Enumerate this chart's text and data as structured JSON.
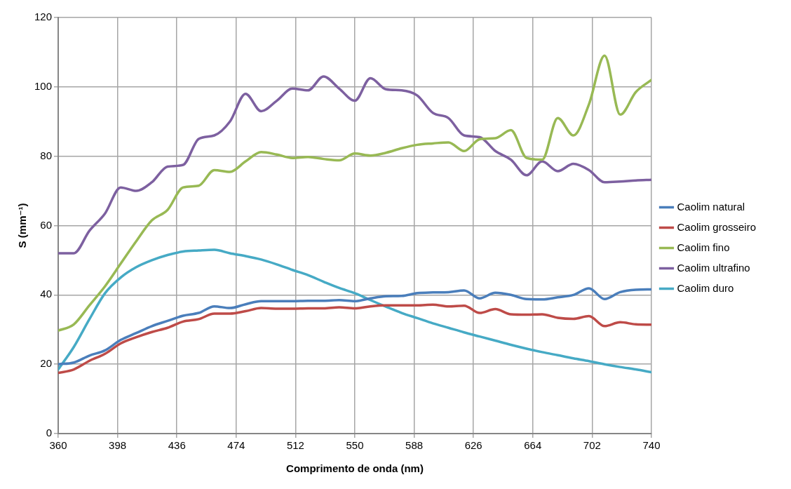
{
  "chart_data": {
    "type": "line",
    "xlabel": "Comprimento de onda (nm)",
    "ylabel": "S (mm⁻¹)",
    "x": [
      360,
      370,
      380,
      390,
      400,
      410,
      420,
      430,
      440,
      450,
      460,
      470,
      480,
      490,
      500,
      510,
      520,
      530,
      540,
      550,
      560,
      570,
      580,
      590,
      600,
      610,
      620,
      630,
      640,
      650,
      660,
      670,
      680,
      690,
      700,
      710,
      720,
      730,
      740
    ],
    "xlim": [
      360,
      740
    ],
    "xticks": [
      360,
      398,
      436,
      474,
      512,
      550,
      588,
      626,
      664,
      702,
      740
    ],
    "ylim": [
      0,
      120
    ],
    "yticks": [
      0,
      20,
      40,
      60,
      80,
      100,
      120
    ],
    "grid": true,
    "legend": "right",
    "marker": "none",
    "line_style": "solid",
    "series": [
      {
        "name": "Caolim natural",
        "color": "#4a7ebb",
        "values": [
          20,
          20.5,
          22.5,
          24,
          27,
          29,
          31,
          32.5,
          34,
          34.8,
          36.7,
          36.2,
          37.3,
          38.2,
          38.2,
          38.2,
          38.3,
          38.3,
          38.5,
          38.2,
          39,
          39.6,
          39.7,
          40.5,
          40.7,
          40.8,
          41.3,
          39,
          40.6,
          40,
          38.8,
          38.7,
          39.3,
          40,
          41.9,
          38.8,
          40.8,
          41.5,
          41.6
        ]
      },
      {
        "name": "Caolim grosseiro",
        "color": "#be4b48",
        "values": [
          17.5,
          18.5,
          21,
          23,
          26,
          27.8,
          29.3,
          30.5,
          32.3,
          33,
          34.6,
          34.6,
          35.3,
          36.2,
          36,
          36,
          36.1,
          36.1,
          36.4,
          36.1,
          36.7,
          37,
          37,
          37,
          37.2,
          36.7,
          36.9,
          34.8,
          35.9,
          34.4,
          34.3,
          34.4,
          33.4,
          33.1,
          33.9,
          31,
          32.1,
          31.5,
          31.4
        ]
      },
      {
        "name": "Caolim fino",
        "color": "#98b954",
        "values": [
          29.7,
          31.5,
          37,
          42.5,
          49,
          55.5,
          61.5,
          64.5,
          71,
          71.5,
          76,
          75.5,
          78.5,
          81.2,
          80.5,
          79.5,
          79.8,
          79.2,
          78.8,
          80.8,
          80.2,
          81,
          82.3,
          83.3,
          83.7,
          84,
          81.5,
          84.9,
          85.2,
          87.5,
          79.5,
          79,
          91,
          86,
          95,
          109,
          92,
          98.5,
          102
        ]
      },
      {
        "name": "Caolim ultrafino",
        "color": "#7d60a0",
        "values": [
          52,
          52,
          58.5,
          63.5,
          71,
          70,
          72.5,
          77,
          77.5,
          85,
          86,
          90,
          98,
          93,
          96,
          99.5,
          99,
          103,
          99.5,
          96,
          102.5,
          99.3,
          99,
          97.5,
          92.5,
          91,
          86,
          85.5,
          81.5,
          79,
          74.5,
          78.5,
          75.7,
          77.8,
          76,
          72.5,
          72.7,
          73,
          73.2
        ]
      },
      {
        "name": "Caolim duro",
        "color": "#46aac5",
        "values": [
          18.5,
          25,
          33,
          40.5,
          45,
          48,
          50,
          51.5,
          52.5,
          52.8,
          53,
          52,
          51.2,
          50.2,
          48.8,
          47.2,
          45.7,
          43.8,
          42,
          40.5,
          38.5,
          36.6,
          34.8,
          33.3,
          31.8,
          30.5,
          29.2,
          28,
          26.8,
          25.6,
          24.5,
          23.5,
          22.6,
          21.7,
          20.9,
          20,
          19.2,
          18.5,
          17.7
        ]
      }
    ]
  }
}
